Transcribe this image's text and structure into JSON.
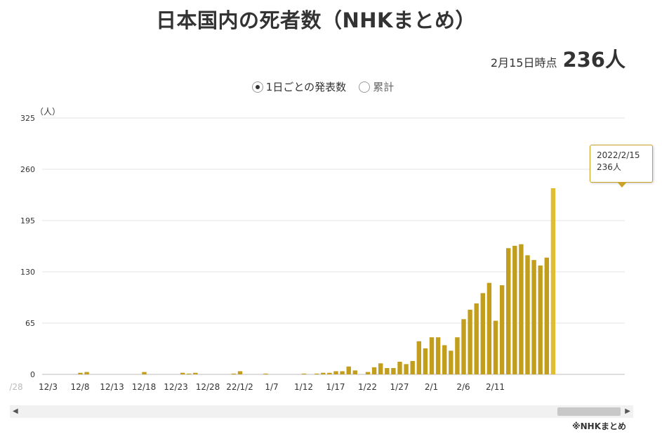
{
  "header": {
    "title": "日本国内の死者数（NHKまとめ）"
  },
  "as_of": {
    "label": "2月15日時点",
    "value": "236人"
  },
  "toggle": {
    "daily_label": "1日ごとの発表数",
    "cumulative_label": "累計"
  },
  "tooltip": {
    "date": "2022/2/15",
    "value": "236人"
  },
  "source": "※NHKまとめ",
  "colors": {
    "bar": "#c29e1c",
    "bar_highlight": "#e1be2f",
    "grid": "#e6e6e6"
  },
  "chart_data": {
    "type": "bar",
    "title": "",
    "xlabel": "",
    "ylabel": "（人）",
    "ylim": [
      0,
      325
    ],
    "yticks": [
      0,
      65,
      130,
      195,
      260,
      325
    ],
    "grid": true,
    "xtick_labels": [
      "/28",
      "12/3",
      "12/8",
      "12/13",
      "12/18",
      "12/23",
      "12/28",
      "22/1/2",
      "1/7",
      "1/12",
      "1/17",
      "1/22",
      "1/27",
      "2/1",
      "2/6",
      "2/11"
    ],
    "start_date": "2021-12-07",
    "values": [
      2,
      3,
      0,
      0,
      0,
      0,
      0,
      0,
      0,
      0,
      3,
      0,
      0,
      0,
      0,
      0,
      2,
      1,
      2,
      0,
      0,
      0,
      0,
      0,
      1,
      4,
      0,
      0,
      0,
      1,
      0,
      0,
      0,
      0,
      0,
      1,
      0,
      1,
      2,
      2,
      4,
      4,
      10,
      5,
      0,
      3,
      9,
      14,
      8,
      8,
      16,
      13,
      17,
      42,
      33,
      47,
      47,
      37,
      30,
      47,
      70,
      82,
      90,
      103,
      116,
      68,
      113,
      160,
      163,
      165,
      151,
      145,
      138,
      148,
      236
    ],
    "highlight_last": true
  }
}
